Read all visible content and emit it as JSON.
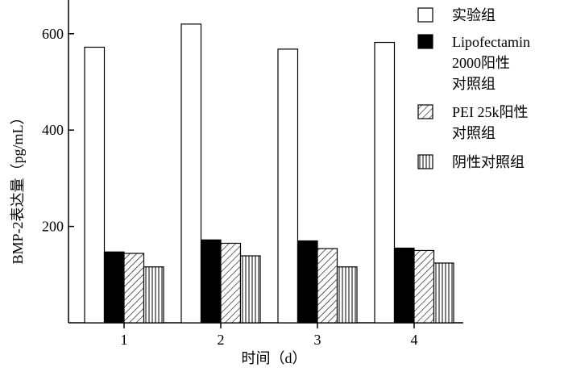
{
  "chart_data": {
    "type": "bar",
    "xlabel": "时间（d）",
    "ylabel": "BMP-2表达量（pg/mL）",
    "categories": [
      "1",
      "2",
      "3",
      "4"
    ],
    "ylim": [
      0,
      670
    ],
    "yticks": [
      200,
      400,
      600
    ],
    "grid": false,
    "legend_position": "right",
    "series": [
      {
        "name_lines": [
          "实验组"
        ],
        "values": [
          572,
          620,
          568,
          582
        ],
        "pattern": "white"
      },
      {
        "name_lines": [
          "Lipofectamin",
          "2000阳性",
          "对照组"
        ],
        "values": [
          147,
          172,
          170,
          155
        ],
        "pattern": "black"
      },
      {
        "name_lines": [
          "PEI 25k阳性",
          "对照组"
        ],
        "values": [
          144,
          165,
          154,
          150
        ],
        "pattern": "diagonal"
      },
      {
        "name_lines": [
          "阴性对照组"
        ],
        "values": [
          116,
          139,
          116,
          124
        ],
        "pattern": "vertical"
      }
    ]
  }
}
